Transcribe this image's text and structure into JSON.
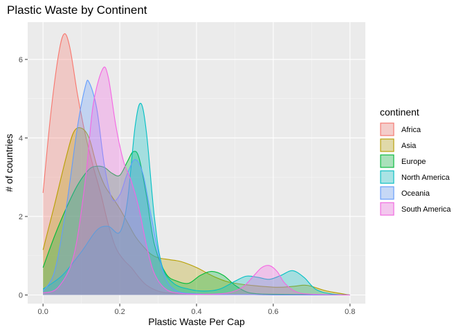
{
  "chart_data": {
    "type": "area",
    "subtype": "density",
    "title": "Plastic Waste by Continent",
    "xlabel": "Plastic Waste Per Cap",
    "ylabel": "# of countries",
    "xlim": [
      -0.04,
      0.84
    ],
    "ylim": [
      -0.22,
      6.95
    ],
    "x_ticks": [
      0.0,
      0.2,
      0.4,
      0.6,
      0.8
    ],
    "x_tick_labels": [
      "0.0",
      "0.2",
      "0.4",
      "0.6",
      "0.8"
    ],
    "y_ticks": [
      0,
      2,
      4,
      6
    ],
    "y_tick_labels": [
      "0",
      "2",
      "4",
      "6"
    ],
    "grid": true,
    "legend": {
      "title": "continent",
      "position": "right"
    },
    "series": [
      {
        "name": "Africa",
        "color": "#F8766D",
        "x": [
          0.0,
          0.02,
          0.04,
          0.055,
          0.07,
          0.09,
          0.11,
          0.13,
          0.15,
          0.17,
          0.19,
          0.21,
          0.23,
          0.25,
          0.27,
          0.3,
          0.33,
          0.38,
          0.45,
          0.55,
          0.7,
          0.8
        ],
        "y": [
          2.6,
          4.6,
          6.1,
          6.65,
          6.3,
          5.1,
          4.1,
          3.3,
          2.6,
          1.8,
          1.2,
          0.9,
          0.7,
          0.45,
          0.25,
          0.1,
          0.05,
          0.03,
          0.01,
          0.01,
          0.0,
          0.0
        ]
      },
      {
        "name": "Asia",
        "color": "#B79F00",
        "x": [
          0.0,
          0.03,
          0.06,
          0.08,
          0.1,
          0.12,
          0.14,
          0.16,
          0.18,
          0.2,
          0.22,
          0.24,
          0.26,
          0.28,
          0.3,
          0.33,
          0.36,
          0.4,
          0.45,
          0.5,
          0.6,
          0.65,
          0.68,
          0.7,
          0.74,
          0.8
        ],
        "y": [
          1.15,
          2.3,
          3.5,
          4.15,
          4.25,
          4.0,
          3.3,
          2.8,
          2.5,
          2.2,
          1.85,
          1.5,
          1.25,
          1.05,
          0.95,
          0.9,
          0.85,
          0.7,
          0.45,
          0.3,
          0.2,
          0.22,
          0.25,
          0.22,
          0.1,
          0.0
        ]
      },
      {
        "name": "Europe",
        "color": "#00BA38",
        "x": [
          0.0,
          0.03,
          0.06,
          0.09,
          0.12,
          0.14,
          0.16,
          0.18,
          0.2,
          0.22,
          0.235,
          0.25,
          0.27,
          0.29,
          0.32,
          0.35,
          0.38,
          0.41,
          0.44,
          0.47,
          0.5,
          0.53,
          0.56,
          0.6,
          0.7,
          0.8
        ],
        "y": [
          0.7,
          1.5,
          2.2,
          2.8,
          3.2,
          3.28,
          3.25,
          3.1,
          3.05,
          3.4,
          3.65,
          3.5,
          2.5,
          1.3,
          0.55,
          0.35,
          0.3,
          0.5,
          0.6,
          0.5,
          0.25,
          0.08,
          0.03,
          0.02,
          0.01,
          0.0
        ]
      },
      {
        "name": "North America",
        "color": "#00BFC4",
        "x": [
          0.0,
          0.05,
          0.1,
          0.14,
          0.17,
          0.2,
          0.22,
          0.24,
          0.255,
          0.27,
          0.29,
          0.31,
          0.34,
          0.38,
          0.42,
          0.46,
          0.5,
          0.53,
          0.56,
          0.59,
          0.62,
          0.65,
          0.68,
          0.71,
          0.75,
          0.8
        ],
        "y": [
          0.15,
          0.5,
          1.1,
          1.65,
          1.75,
          1.6,
          2.4,
          4.3,
          4.88,
          4.1,
          2.0,
          0.75,
          0.3,
          0.15,
          0.1,
          0.15,
          0.35,
          0.48,
          0.45,
          0.4,
          0.5,
          0.62,
          0.45,
          0.15,
          0.03,
          0.0
        ]
      },
      {
        "name": "Oceania",
        "color": "#619CFF",
        "x": [
          0.0,
          0.03,
          0.06,
          0.09,
          0.11,
          0.12,
          0.14,
          0.16,
          0.18,
          0.2,
          0.22,
          0.24,
          0.26,
          0.28,
          0.3,
          0.32,
          0.35,
          0.4,
          0.48,
          0.55,
          0.6,
          0.7,
          0.8
        ],
        "y": [
          0.1,
          0.6,
          2.2,
          4.3,
          5.3,
          5.42,
          4.75,
          3.3,
          2.45,
          2.55,
          3.1,
          3.45,
          3.1,
          2.1,
          1.1,
          0.4,
          0.1,
          0.03,
          0.01,
          0.01,
          0.0,
          0.0,
          0.0
        ]
      },
      {
        "name": "South America",
        "color": "#F564E3",
        "x": [
          0.0,
          0.04,
          0.08,
          0.11,
          0.13,
          0.155,
          0.17,
          0.19,
          0.21,
          0.23,
          0.25,
          0.27,
          0.29,
          0.32,
          0.36,
          0.42,
          0.48,
          0.52,
          0.55,
          0.57,
          0.59,
          0.61,
          0.63,
          0.66,
          0.7,
          0.8
        ],
        "y": [
          0.05,
          0.2,
          1.0,
          2.9,
          4.8,
          5.75,
          5.55,
          4.3,
          3.4,
          2.9,
          2.2,
          1.25,
          0.55,
          0.15,
          0.04,
          0.02,
          0.05,
          0.2,
          0.5,
          0.7,
          0.75,
          0.6,
          0.3,
          0.08,
          0.02,
          0.0
        ]
      }
    ]
  }
}
